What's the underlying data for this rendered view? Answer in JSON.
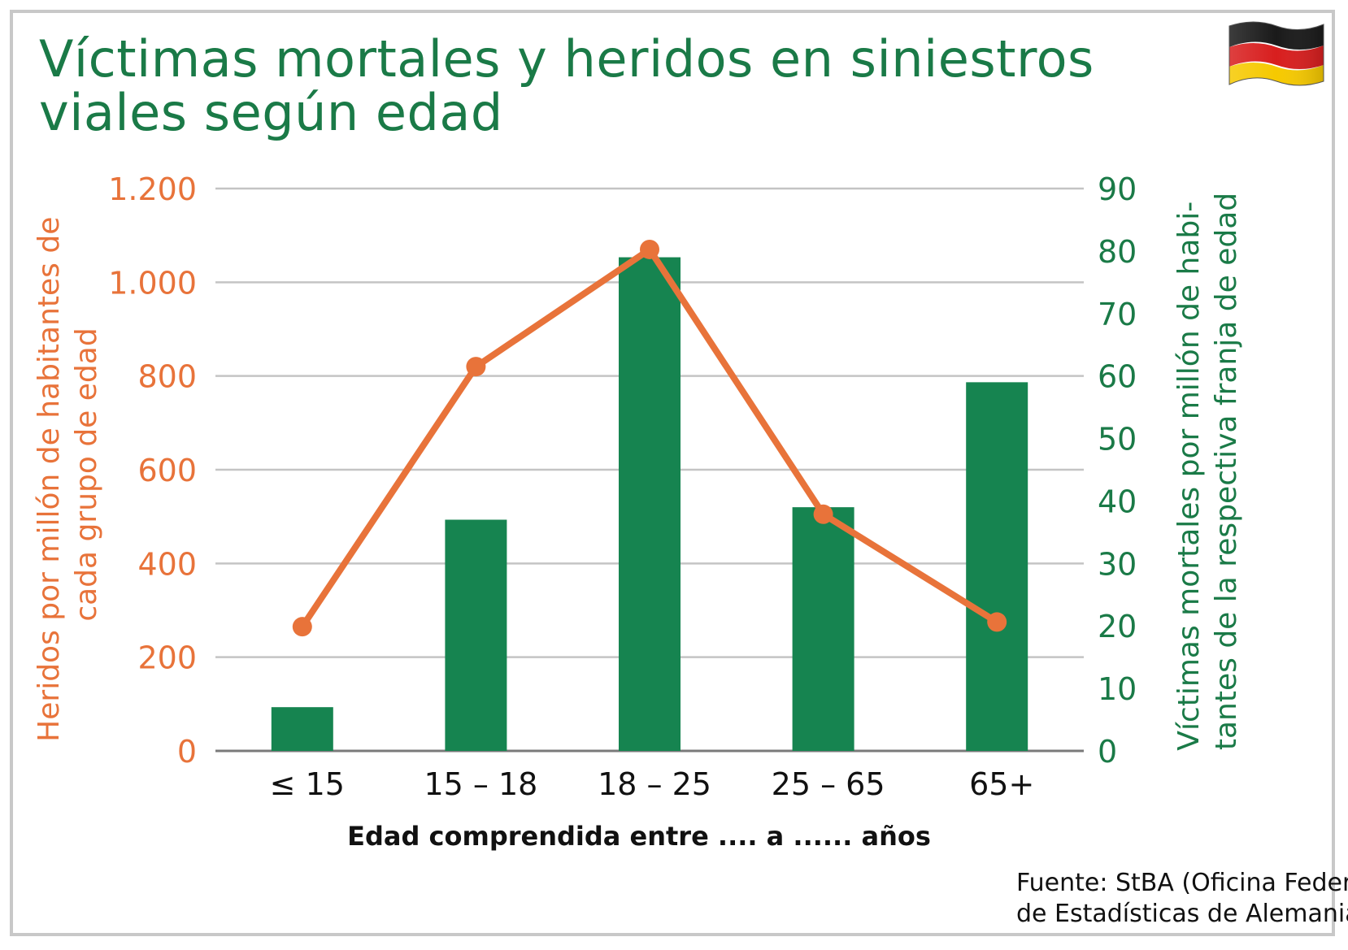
{
  "title": "Víctimas mortales y heridos en siniestros viales según edad",
  "flag_icon": "germany-flag-icon",
  "source": {
    "line1": "Fuente: StBA (Oficina Federal",
    "line2": "de Estadísticas de Alemania)"
  },
  "colors": {
    "bar": "#168450",
    "line": "#e8733a",
    "left_axis": "#e8733a",
    "right_axis": "#1a7a47",
    "title": "#1a7a47",
    "grid": "#c4c4c4"
  },
  "chart_data": {
    "type": "bar",
    "categories": [
      "≤ 15",
      "15 – 18",
      "18 – 25",
      "25 – 65",
      "65+"
    ],
    "xlabel": "Edad comprendida entre .... a ...... años",
    "series": [
      {
        "name": "",
        "type": "bar",
        "axis": "right",
        "values": [
          7,
          37,
          79,
          39,
          59
        ]
      },
      {
        "name": "",
        "type": "line",
        "axis": "left",
        "values": [
          265,
          820,
          1070,
          505,
          275
        ]
      }
    ],
    "left_axis": {
      "label_line1": "Heridos por millón de habitantes de",
      "label_line2": "cada grupo de edad",
      "range": [
        0,
        1200
      ],
      "ticks": [
        0,
        200,
        400,
        600,
        800,
        1000,
        1200
      ],
      "tick_labels": [
        "0",
        "200",
        "400",
        "600",
        "800",
        "1.000",
        "1.200"
      ]
    },
    "right_axis": {
      "label_line1": "Víctimas mortales por millón de habi-",
      "label_line2": "tantes de la respectiva franja de edad",
      "range": [
        0,
        90
      ],
      "ticks": [
        0,
        10,
        20,
        30,
        40,
        50,
        60,
        70,
        80,
        90
      ],
      "tick_labels": [
        "0",
        "10",
        "20",
        "30",
        "40",
        "50",
        "60",
        "70",
        "80",
        "90"
      ]
    },
    "grid": true
  }
}
